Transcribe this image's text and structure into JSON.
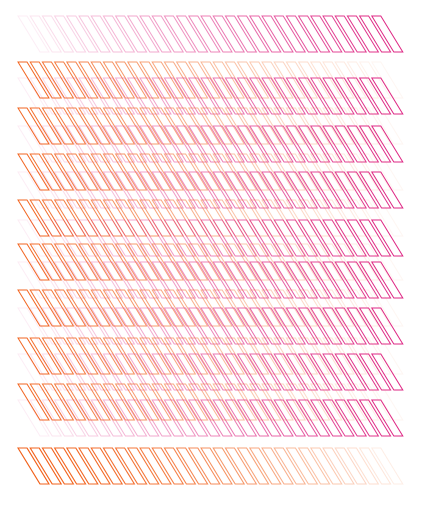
{
  "artwork": {
    "colors": {
      "magenta": "#dd1f7f",
      "orange": "#f2621c",
      "background": "#ffffff"
    },
    "bands": [
      {
        "color": "magenta",
        "direction": "fade-left"
      },
      {
        "color": "orange",
        "direction": "fade-right"
      },
      {
        "color": "magenta",
        "direction": "fade-left"
      },
      {
        "color": "orange",
        "direction": "fade-right"
      },
      {
        "color": "magenta",
        "direction": "fade-left"
      },
      {
        "color": "orange",
        "direction": "fade-right"
      },
      {
        "color": "magenta",
        "direction": "fade-left"
      },
      {
        "color": "orange",
        "direction": "fade-right"
      },
      {
        "color": "magenta",
        "direction": "fade-left"
      },
      {
        "color": "orange",
        "direction": "fade-right"
      },
      {
        "color": "magenta",
        "direction": "fade-left"
      },
      {
        "color": "orange",
        "direction": "fade-right"
      },
      {
        "color": "magenta",
        "direction": "fade-left"
      },
      {
        "color": "orange",
        "direction": "fade-right"
      },
      {
        "color": "magenta",
        "direction": "fade-left"
      },
      {
        "color": "orange",
        "direction": "fade-right"
      },
      {
        "color": "magenta",
        "direction": "fade-left"
      },
      {
        "color": "orange",
        "direction": "fade-right"
      },
      {
        "color": "orange",
        "direction": "fade-right"
      }
    ]
  }
}
